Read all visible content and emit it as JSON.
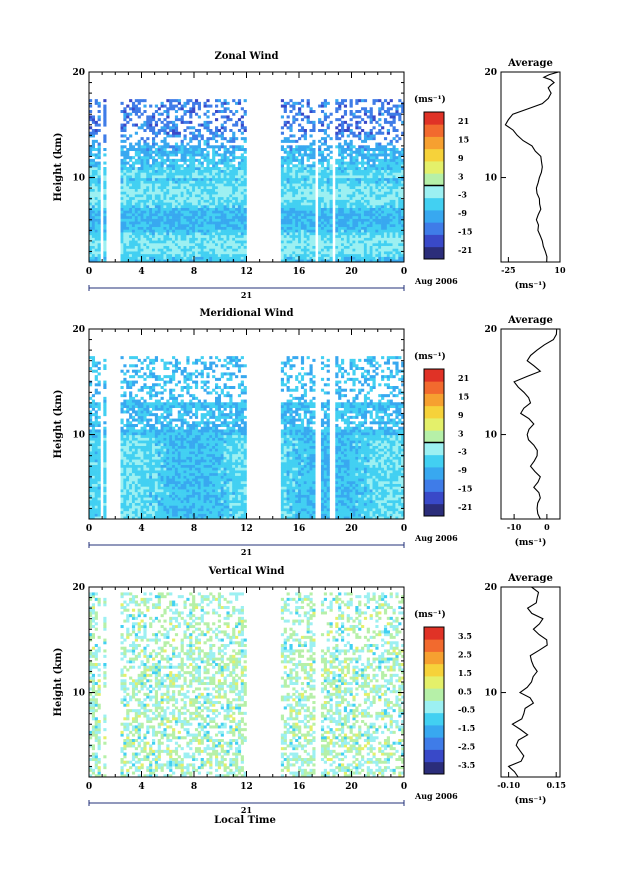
{
  "figure": {
    "xlabel": "Local Time",
    "date_label": "Aug 2006",
    "day_label": "21",
    "height_label": "Height (km)",
    "average_title": "Average"
  },
  "chart_data": [
    {
      "type": "heatmap",
      "title": "Zonal Wind",
      "ylabel": "Height (km)",
      "xlabel": "",
      "x_ticks": [
        "0",
        "4",
        "8",
        "12",
        "16",
        "20",
        "0"
      ],
      "y_ticks": [
        "20",
        "10"
      ],
      "xlim": [
        0,
        24
      ],
      "ylim": [
        2,
        20
      ],
      "colorbar": {
        "unit": "(ms⁻¹)",
        "ticks": [
          "21",
          "15",
          "9",
          "3",
          "-3",
          "-9",
          "-15",
          "-21"
        ],
        "range": [
          -24,
          24
        ]
      },
      "data_gaps_hours": [
        [
          0.8,
          1.1
        ],
        [
          1.4,
          2.3
        ],
        [
          12,
          14.7
        ],
        [
          16.5,
          16.6
        ],
        [
          17.2,
          17.5
        ],
        [
          18.5,
          18.8
        ]
      ],
      "top_of_data_km": 17.5,
      "profile": {
        "title": "Average",
        "x_ticks": [
          "-25",
          "10"
        ],
        "xlim": [
          -30,
          10
        ],
        "xunit": "(ms⁻¹)",
        "y_ticks": [
          "20",
          "10"
        ],
        "height_km": [
          2,
          3,
          4,
          5,
          6,
          7,
          8,
          9,
          10,
          11,
          12,
          13,
          14,
          15,
          16,
          17,
          18,
          18.5,
          19,
          19.5,
          20
        ],
        "values": [
          1,
          0,
          -2,
          -5,
          -6,
          -3,
          -4,
          -6,
          -4,
          -2,
          -3,
          -9,
          -19,
          -27,
          -22,
          -2,
          4,
          2,
          6,
          -1,
          9
        ]
      }
    },
    {
      "type": "heatmap",
      "title": "Meridional Wind",
      "ylabel": "Height (km)",
      "xlabel": "",
      "x_ticks": [
        "0",
        "4",
        "8",
        "12",
        "16",
        "20",
        "0"
      ],
      "y_ticks": [
        "20",
        "10"
      ],
      "xlim": [
        0,
        24
      ],
      "ylim": [
        2,
        20
      ],
      "colorbar": {
        "unit": "(ms⁻¹)",
        "ticks": [
          "21",
          "15",
          "9",
          "3",
          "-3",
          "-9",
          "-15",
          "-21"
        ],
        "range": [
          -24,
          24
        ]
      },
      "data_gaps_hours": [
        [
          0.8,
          1.1
        ],
        [
          1.4,
          2.3
        ],
        [
          12,
          14.7
        ],
        [
          17.2,
          17.6
        ],
        [
          18.4,
          18.7
        ]
      ],
      "top_of_data_km": 17.5,
      "profile": {
        "title": "Average",
        "x_ticks": [
          "-10",
          "0"
        ],
        "xlim": [
          -14,
          4
        ],
        "xunit": "(ms⁻¹)",
        "y_ticks": [
          "20",
          "10"
        ],
        "height_km": [
          2,
          3,
          4,
          5,
          6,
          7,
          8,
          9,
          10,
          11,
          12,
          13,
          14,
          15,
          16,
          17,
          18,
          19,
          20
        ],
        "values": [
          -2,
          -3,
          -2,
          -4,
          -2,
          -5,
          -3,
          -4,
          -6,
          -4,
          -8,
          -5,
          -7,
          -10,
          -2,
          -6,
          -3,
          2,
          3
        ]
      }
    },
    {
      "type": "heatmap",
      "title": "Vertical Wind",
      "ylabel": "Height (km)",
      "xlabel": "Local Time",
      "x_ticks": [
        "0",
        "4",
        "8",
        "12",
        "16",
        "20",
        "0"
      ],
      "y_ticks": [
        "20",
        "10"
      ],
      "xlim": [
        0,
        24
      ],
      "ylim": [
        2,
        20
      ],
      "colorbar": {
        "unit": "(ms⁻¹)",
        "ticks": [
          "3.5",
          "2.5",
          "1.5",
          "0.5",
          "-0.5",
          "-1.5",
          "-2.5",
          "-3.5"
        ],
        "range": [
          -4,
          4
        ]
      },
      "data_gaps_hours": [
        [
          0.8,
          1.1
        ],
        [
          1.4,
          2.3
        ],
        [
          12,
          14.7
        ],
        [
          17.2,
          17.6
        ]
      ],
      "top_of_data_km": 19.5,
      "profile": {
        "title": "Average",
        "x_ticks": [
          "-0.10",
          "0.15"
        ],
        "xlim": [
          -0.14,
          0.17
        ],
        "xunit": "(ms⁻¹)",
        "y_ticks": [
          "20",
          "10"
        ],
        "height_km": [
          2,
          3,
          4,
          5,
          6,
          7,
          8,
          9,
          10,
          11,
          12,
          13,
          14,
          15,
          16,
          17,
          18,
          19,
          20
        ],
        "values": [
          -0.05,
          -0.1,
          -0.02,
          -0.06,
          0.0,
          -0.08,
          -0.02,
          0.03,
          -0.04,
          0.02,
          0.05,
          0.02,
          0.06,
          0.1,
          0.03,
          0.08,
          0.0,
          0.05,
          0.02
        ]
      }
    }
  ]
}
